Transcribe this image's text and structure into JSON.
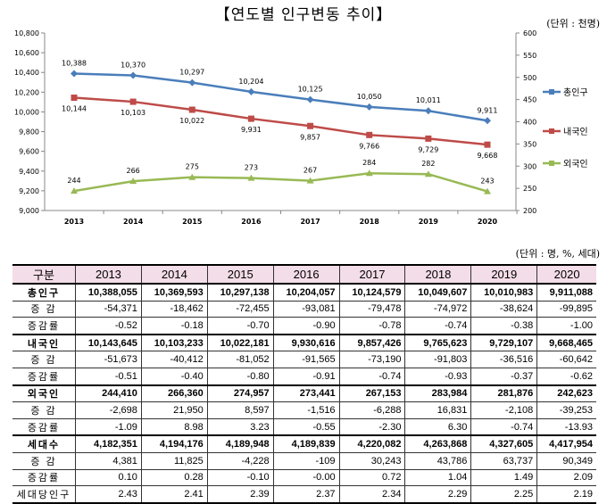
{
  "title": "【연도별 인구변동 추이】",
  "chart_unit": "(단위 : 천명)",
  "table_unit": "(단위 : 명, %, 세대)",
  "chart_data": {
    "type": "line",
    "title": "연도별 인구변동 추이",
    "categories": [
      "2013",
      "2014",
      "2015",
      "2016",
      "2017",
      "2018",
      "2019",
      "2020"
    ],
    "left_axis": {
      "min": 9000,
      "max": 10800,
      "step": 200,
      "ticks": [
        "9,000",
        "9,200",
        "9,400",
        "9,600",
        "9,800",
        "10,000",
        "10,200",
        "10,400",
        "10,600",
        "10,800"
      ]
    },
    "right_axis": {
      "min": 200,
      "max": 600,
      "step": 50,
      "ticks": [
        "200",
        "250",
        "300",
        "350",
        "400",
        "450",
        "500",
        "550",
        "600"
      ]
    },
    "legend_position": "right",
    "series": [
      {
        "name": "총인구",
        "axis": "left",
        "color": "#4a7ebb",
        "marker": "diamond",
        "values": [
          10388,
          10370,
          10297,
          10204,
          10125,
          10050,
          10011,
          9911
        ],
        "labels": [
          "10,388",
          "10,370",
          "10,297",
          "10,204",
          "10,125",
          "10,050",
          "10,011",
          "9,911"
        ],
        "label_pos": "above"
      },
      {
        "name": "내국인",
        "axis": "left",
        "color": "#be4b48",
        "marker": "square",
        "values": [
          10144,
          10103,
          10022,
          9931,
          9857,
          9766,
          9729,
          9668
        ],
        "labels": [
          "10,144",
          "10,103",
          "10,022",
          "9,931",
          "9,857",
          "9,766",
          "9,729",
          "9,668"
        ],
        "label_pos": "below"
      },
      {
        "name": "외국인",
        "axis": "right",
        "color": "#98b954",
        "marker": "triangle",
        "values": [
          244,
          266,
          275,
          273,
          267,
          284,
          282,
          243
        ],
        "labels": [
          "244",
          "266",
          "275",
          "273",
          "267",
          "284",
          "282",
          "243"
        ],
        "label_pos": "above"
      }
    ]
  },
  "table": {
    "headers": [
      "구분",
      "2013",
      "2014",
      "2015",
      "2016",
      "2017",
      "2018",
      "2019",
      "2020"
    ],
    "rows": [
      {
        "label": "총인구",
        "main": true,
        "cells": [
          "10,388,055",
          "10,369,593",
          "10,297,138",
          "10,204,057",
          "10,124,579",
          "10,049,607",
          "10,010,983",
          "9,911,088"
        ]
      },
      {
        "label": "증 감",
        "cells": [
          "-54,371",
          "-18,462",
          "-72,455",
          "-93,081",
          "-79,478",
          "-74,972",
          "-38,624",
          "-99,895"
        ]
      },
      {
        "label": "증감률",
        "cells": [
          "-0.52",
          "-0.18",
          "-0.70",
          "-0.90",
          "-0.78",
          "-0.74",
          "-0.38",
          "-1.00"
        ]
      },
      {
        "label": "내국인",
        "main": true,
        "cells": [
          "10,143,645",
          "10,103,233",
          "10,022,181",
          "9,930,616",
          "9,857,426",
          "9,765,623",
          "9,729,107",
          "9,668,465"
        ]
      },
      {
        "label": "증 감",
        "cells": [
          "-51,673",
          "-40,412",
          "-81,052",
          "-91,565",
          "-73,190",
          "-91,803",
          "-36,516",
          "-60,642"
        ]
      },
      {
        "label": "증감률",
        "cells": [
          "-0.51",
          "-0.40",
          "-0.80",
          "-0.91",
          "-0.74",
          "-0.93",
          "-0.37",
          "-0.62"
        ]
      },
      {
        "label": "외국인",
        "main": true,
        "cells": [
          "244,410",
          "266,360",
          "274,957",
          "273,441",
          "267,153",
          "283,984",
          "281,876",
          "242,623"
        ]
      },
      {
        "label": "증 감",
        "cells": [
          "-2,698",
          "21,950",
          "8,597",
          "-1,516",
          "-6,288",
          "16,831",
          "-2,108",
          "-39,253"
        ]
      },
      {
        "label": "증감률",
        "cells": [
          "-1.09",
          "8.98",
          "3.23",
          "-0.55",
          "-2.30",
          "6.30",
          "-0.74",
          "-13.93"
        ]
      },
      {
        "label": "세대수",
        "main": true,
        "sep": true,
        "cells": [
          "4,182,351",
          "4,194,176",
          "4,189,948",
          "4,189,839",
          "4,220,082",
          "4,263,868",
          "4,327,605",
          "4,417,954"
        ]
      },
      {
        "label": "증 감",
        "cells": [
          "4,381",
          "11,825",
          "-4,228",
          "-109",
          "30,243",
          "43,786",
          "63,737",
          "90,349"
        ]
      },
      {
        "label": "증감률",
        "cells": [
          "0.10",
          "0.28",
          "-0.10",
          "-0.00",
          "0.72",
          "1.04",
          "1.49",
          "2.09"
        ]
      },
      {
        "label": "세대당인구",
        "cells": [
          "2.43",
          "2.41",
          "2.39",
          "2.37",
          "2.34",
          "2.29",
          "2.25",
          "2.19"
        ]
      }
    ]
  }
}
